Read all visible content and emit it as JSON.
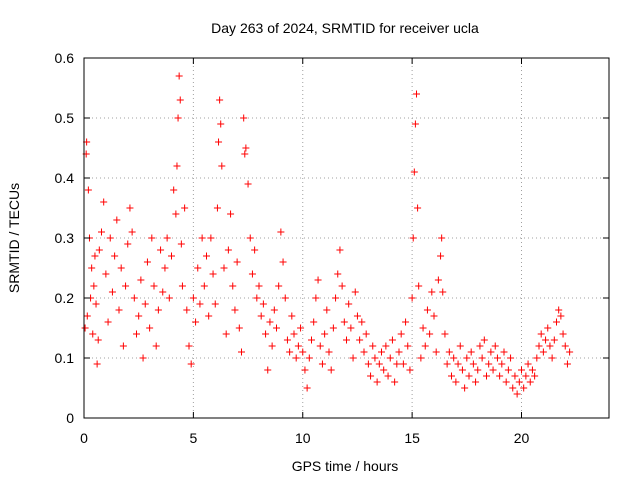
{
  "chart_data": {
    "type": "scatter",
    "title": "Day 263 of 2024, SRMTID for receiver ucla",
    "xlabel": "GPS time / hours",
    "ylabel": "SRMTID / TECUs",
    "xlim": [
      0,
      24
    ],
    "ylim": [
      0,
      0.6
    ],
    "xticks": [
      0,
      5,
      10,
      15,
      20
    ],
    "xtick_labels": [
      "0",
      "5",
      "10",
      "15",
      "20"
    ],
    "yticks": [
      0,
      0.1,
      0.2,
      0.3,
      0.4,
      0.5,
      0.6
    ],
    "ytick_labels": [
      "0",
      "0.1",
      "0.2",
      "0.3",
      "0.4",
      "0.5",
      "0.6"
    ],
    "grid": true,
    "marker": "+",
    "series_color": "#ff0000",
    "series": [
      {
        "name": "SRMTID",
        "points": [
          [
            0.05,
            0.15
          ],
          [
            0.1,
            0.44
          ],
          [
            0.12,
            0.46
          ],
          [
            0.15,
            0.17
          ],
          [
            0.2,
            0.38
          ],
          [
            0.25,
            0.3
          ],
          [
            0.3,
            0.2
          ],
          [
            0.35,
            0.25
          ],
          [
            0.4,
            0.14
          ],
          [
            0.45,
            0.22
          ],
          [
            0.5,
            0.27
          ],
          [
            0.55,
            0.19
          ],
          [
            0.6,
            0.09
          ],
          [
            0.65,
            0.13
          ],
          [
            0.7,
            0.28
          ],
          [
            0.8,
            0.31
          ],
          [
            0.9,
            0.36
          ],
          [
            1.0,
            0.24
          ],
          [
            1.1,
            0.16
          ],
          [
            1.2,
            0.3
          ],
          [
            1.3,
            0.21
          ],
          [
            1.4,
            0.27
          ],
          [
            1.5,
            0.33
          ],
          [
            1.6,
            0.18
          ],
          [
            1.7,
            0.25
          ],
          [
            1.8,
            0.12
          ],
          [
            1.9,
            0.22
          ],
          [
            2.0,
            0.29
          ],
          [
            2.1,
            0.35
          ],
          [
            2.2,
            0.31
          ],
          [
            2.3,
            0.2
          ],
          [
            2.4,
            0.14
          ],
          [
            2.5,
            0.17
          ],
          [
            2.6,
            0.23
          ],
          [
            2.7,
            0.1
          ],
          [
            2.8,
            0.19
          ],
          [
            2.9,
            0.26
          ],
          [
            3.0,
            0.15
          ],
          [
            3.1,
            0.3
          ],
          [
            3.2,
            0.22
          ],
          [
            3.3,
            0.12
          ],
          [
            3.4,
            0.18
          ],
          [
            3.5,
            0.28
          ],
          [
            3.6,
            0.21
          ],
          [
            3.7,
            0.25
          ],
          [
            3.8,
            0.3
          ],
          [
            3.9,
            0.2
          ],
          [
            4.0,
            0.27
          ],
          [
            4.1,
            0.38
          ],
          [
            4.2,
            0.34
          ],
          [
            4.25,
            0.42
          ],
          [
            4.3,
            0.5
          ],
          [
            4.35,
            0.57
          ],
          [
            4.4,
            0.53
          ],
          [
            4.45,
            0.29
          ],
          [
            4.5,
            0.22
          ],
          [
            4.6,
            0.35
          ],
          [
            4.7,
            0.18
          ],
          [
            4.8,
            0.12
          ],
          [
            4.9,
            0.09
          ],
          [
            5.0,
            0.2
          ],
          [
            5.1,
            0.16
          ],
          [
            5.2,
            0.25
          ],
          [
            5.3,
            0.19
          ],
          [
            5.4,
            0.3
          ],
          [
            5.5,
            0.22
          ],
          [
            5.6,
            0.27
          ],
          [
            5.7,
            0.17
          ],
          [
            5.8,
            0.3
          ],
          [
            5.9,
            0.24
          ],
          [
            6.0,
            0.19
          ],
          [
            6.1,
            0.35
          ],
          [
            6.15,
            0.46
          ],
          [
            6.2,
            0.53
          ],
          [
            6.25,
            0.49
          ],
          [
            6.3,
            0.42
          ],
          [
            6.4,
            0.25
          ],
          [
            6.5,
            0.14
          ],
          [
            6.6,
            0.28
          ],
          [
            6.7,
            0.34
          ],
          [
            6.8,
            0.22
          ],
          [
            6.9,
            0.18
          ],
          [
            7.0,
            0.26
          ],
          [
            7.1,
            0.15
          ],
          [
            7.2,
            0.11
          ],
          [
            7.3,
            0.5
          ],
          [
            7.35,
            0.44
          ],
          [
            7.4,
            0.45
          ],
          [
            7.5,
            0.39
          ],
          [
            7.6,
            0.3
          ],
          [
            7.7,
            0.24
          ],
          [
            7.8,
            0.28
          ],
          [
            7.9,
            0.2
          ],
          [
            8.0,
            0.22
          ],
          [
            8.1,
            0.17
          ],
          [
            8.2,
            0.19
          ],
          [
            8.3,
            0.14
          ],
          [
            8.4,
            0.08
          ],
          [
            8.5,
            0.16
          ],
          [
            8.6,
            0.12
          ],
          [
            8.7,
            0.18
          ],
          [
            8.8,
            0.15
          ],
          [
            8.9,
            0.22
          ],
          [
            9.0,
            0.31
          ],
          [
            9.1,
            0.26
          ],
          [
            9.2,
            0.2
          ],
          [
            9.3,
            0.13
          ],
          [
            9.4,
            0.11
          ],
          [
            9.5,
            0.17
          ],
          [
            9.6,
            0.14
          ],
          [
            9.7,
            0.1
          ],
          [
            9.8,
            0.12
          ],
          [
            9.9,
            0.15
          ],
          [
            10.0,
            0.11
          ],
          [
            10.1,
            0.08
          ],
          [
            10.2,
            0.05
          ],
          [
            10.3,
            0.1
          ],
          [
            10.4,
            0.13
          ],
          [
            10.5,
            0.16
          ],
          [
            10.6,
            0.2
          ],
          [
            10.7,
            0.23
          ],
          [
            10.8,
            0.12
          ],
          [
            10.9,
            0.09
          ],
          [
            11.0,
            0.14
          ],
          [
            11.1,
            0.18
          ],
          [
            11.2,
            0.11
          ],
          [
            11.3,
            0.08
          ],
          [
            11.4,
            0.15
          ],
          [
            11.5,
            0.2
          ],
          [
            11.6,
            0.24
          ],
          [
            11.7,
            0.28
          ],
          [
            11.8,
            0.22
          ],
          [
            11.9,
            0.16
          ],
          [
            12.0,
            0.13
          ],
          [
            12.1,
            0.19
          ],
          [
            12.2,
            0.15
          ],
          [
            12.3,
            0.1
          ],
          [
            12.4,
            0.21
          ],
          [
            12.5,
            0.17
          ],
          [
            12.6,
            0.13
          ],
          [
            12.7,
            0.16
          ],
          [
            12.8,
            0.11
          ],
          [
            12.9,
            0.14
          ],
          [
            13.0,
            0.09
          ],
          [
            13.1,
            0.07
          ],
          [
            13.2,
            0.12
          ],
          [
            13.3,
            0.1
          ],
          [
            13.4,
            0.06
          ],
          [
            13.5,
            0.09
          ],
          [
            13.6,
            0.11
          ],
          [
            13.7,
            0.08
          ],
          [
            13.8,
            0.12
          ],
          [
            13.9,
            0.07
          ],
          [
            14.0,
            0.1
          ],
          [
            14.1,
            0.13
          ],
          [
            14.2,
            0.06
          ],
          [
            14.3,
            0.09
          ],
          [
            14.4,
            0.11
          ],
          [
            14.5,
            0.14
          ],
          [
            14.6,
            0.09
          ],
          [
            14.7,
            0.16
          ],
          [
            14.8,
            0.12
          ],
          [
            14.9,
            0.08
          ],
          [
            15.0,
            0.2
          ],
          [
            15.05,
            0.3
          ],
          [
            15.1,
            0.41
          ],
          [
            15.15,
            0.49
          ],
          [
            15.2,
            0.54
          ],
          [
            15.25,
            0.35
          ],
          [
            15.3,
            0.22
          ],
          [
            15.4,
            0.1
          ],
          [
            15.5,
            0.15
          ],
          [
            15.6,
            0.12
          ],
          [
            15.7,
            0.18
          ],
          [
            15.8,
            0.14
          ],
          [
            15.9,
            0.21
          ],
          [
            16.0,
            0.17
          ],
          [
            16.1,
            0.11
          ],
          [
            16.2,
            0.23
          ],
          [
            16.3,
            0.27
          ],
          [
            16.35,
            0.3
          ],
          [
            16.4,
            0.21
          ],
          [
            16.5,
            0.14
          ],
          [
            16.6,
            0.09
          ],
          [
            16.7,
            0.11
          ],
          [
            16.8,
            0.07
          ],
          [
            16.9,
            0.1
          ],
          [
            17.0,
            0.06
          ],
          [
            17.1,
            0.09
          ],
          [
            17.2,
            0.12
          ],
          [
            17.3,
            0.08
          ],
          [
            17.4,
            0.05
          ],
          [
            17.5,
            0.1
          ],
          [
            17.6,
            0.07
          ],
          [
            17.7,
            0.11
          ],
          [
            17.8,
            0.09
          ],
          [
            17.9,
            0.06
          ],
          [
            18.0,
            0.08
          ],
          [
            18.1,
            0.12
          ],
          [
            18.2,
            0.1
          ],
          [
            18.3,
            0.13
          ],
          [
            18.4,
            0.07
          ],
          [
            18.5,
            0.09
          ],
          [
            18.6,
            0.11
          ],
          [
            18.7,
            0.08
          ],
          [
            18.8,
            0.12
          ],
          [
            18.9,
            0.1
          ],
          [
            19.0,
            0.07
          ],
          [
            19.1,
            0.09
          ],
          [
            19.2,
            0.11
          ],
          [
            19.3,
            0.06
          ],
          [
            19.4,
            0.08
          ],
          [
            19.5,
            0.1
          ],
          [
            19.6,
            0.05
          ],
          [
            19.7,
            0.07
          ],
          [
            19.8,
            0.04
          ],
          [
            19.9,
            0.06
          ],
          [
            20.0,
            0.08
          ],
          [
            20.1,
            0.05
          ],
          [
            20.2,
            0.07
          ],
          [
            20.3,
            0.09
          ],
          [
            20.4,
            0.06
          ],
          [
            20.5,
            0.08
          ],
          [
            20.6,
            0.07
          ],
          [
            20.7,
            0.1
          ],
          [
            20.8,
            0.12
          ],
          [
            20.9,
            0.14
          ],
          [
            21.0,
            0.11
          ],
          [
            21.1,
            0.13
          ],
          [
            21.2,
            0.15
          ],
          [
            21.3,
            0.12
          ],
          [
            21.4,
            0.1
          ],
          [
            21.5,
            0.13
          ],
          [
            21.6,
            0.16
          ],
          [
            21.7,
            0.18
          ],
          [
            21.8,
            0.17
          ],
          [
            21.9,
            0.14
          ],
          [
            22.0,
            0.12
          ],
          [
            22.1,
            0.09
          ],
          [
            22.2,
            0.11
          ]
        ]
      }
    ]
  }
}
